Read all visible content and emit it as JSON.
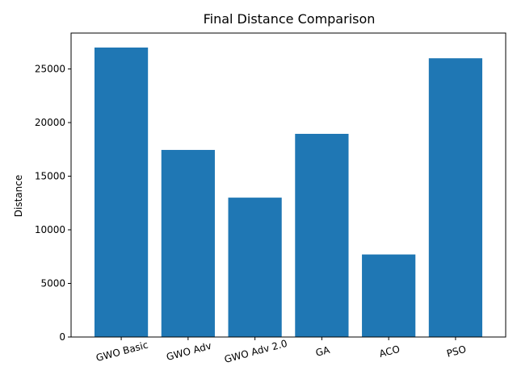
{
  "chart_data": {
    "type": "bar",
    "title": "Final Distance Comparison",
    "xlabel": "",
    "ylabel": "Distance",
    "categories": [
      "GWO Basic",
      "GWO Adv",
      "GWO Adv 2.0",
      "GA",
      "ACO",
      "PSO"
    ],
    "values": [
      27000,
      17450,
      13000,
      18950,
      7700,
      26000
    ],
    "ylim": [
      0,
      28350
    ],
    "yticks": [
      0,
      5000,
      10000,
      15000,
      20000,
      25000
    ],
    "bar_color": "#1f77b4",
    "grid": false,
    "x_tick_rotation_deg": 15
  }
}
